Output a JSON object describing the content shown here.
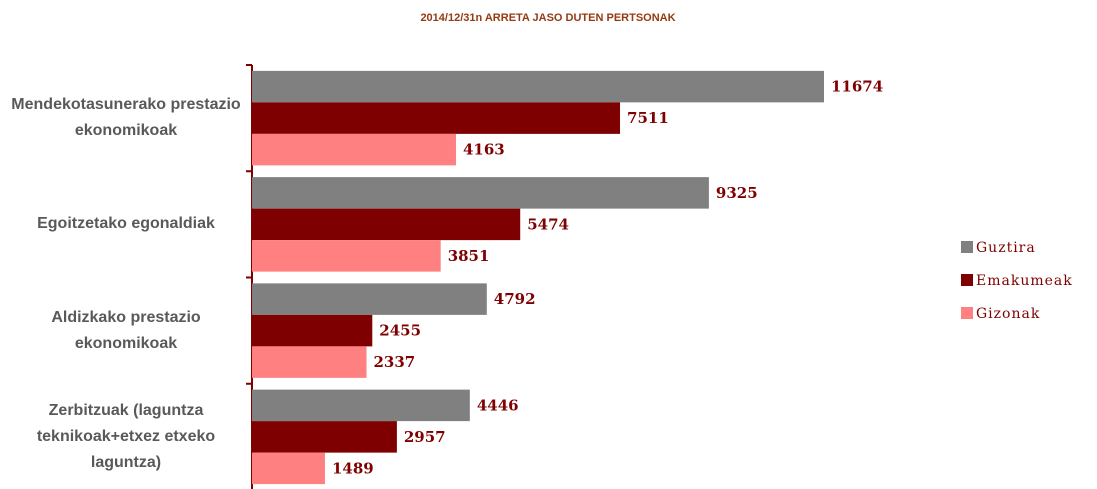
{
  "chart_data": {
    "type": "bar",
    "orientation": "horizontal",
    "title": "2014/12/31n ARRETA JASO DUTEN PERTSONAK",
    "categories": [
      "Mendekotasunerako prestazio ekonomikoak",
      "Egoitzetako egonaldiak",
      "Aldizkako prestazio ekonomikoak",
      "Zerbitzuak (laguntza teknikoak+etxez etxeko laguntza)"
    ],
    "series": [
      {
        "name": "Guztira",
        "color": "#808080",
        "values": [
          11674,
          9325,
          4792,
          4446
        ]
      },
      {
        "name": "Emakumeak",
        "color": "#7f0000",
        "values": [
          7511,
          5474,
          2455,
          2957
        ]
      },
      {
        "name": "Gizonak",
        "color": "#ff8080",
        "values": [
          4163,
          3851,
          2337,
          1489
        ]
      }
    ],
    "legend": "right"
  }
}
